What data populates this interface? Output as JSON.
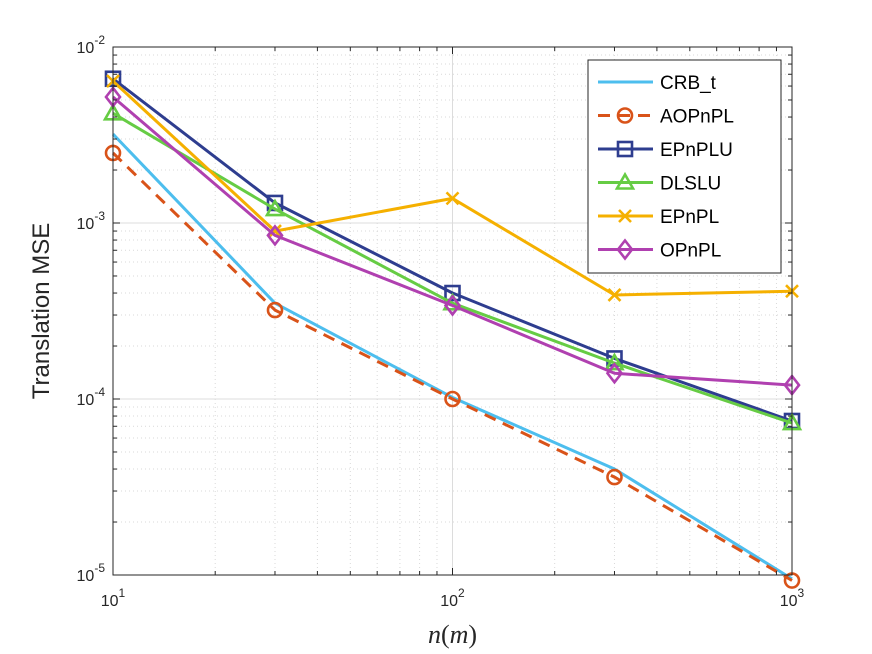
{
  "chart_data": {
    "type": "line",
    "scale": "loglog",
    "title": "",
    "xlabel": "n(m)",
    "xlabel_parts": {
      "main": "n",
      "open": "(",
      "unit": "m",
      "close": ")"
    },
    "ylabel": "Translation MSE",
    "xlim": [
      10,
      1000
    ],
    "ylim": [
      1e-05,
      0.01
    ],
    "grid": true,
    "legend_position": "top-right",
    "x_ticks": [
      {
        "value": 10,
        "base": "10",
        "exp": "1"
      },
      {
        "value": 100,
        "base": "10",
        "exp": "2"
      },
      {
        "value": 1000,
        "base": "10",
        "exp": "3"
      }
    ],
    "y_ticks": [
      {
        "value": 1e-05,
        "base": "10",
        "exp": "-5"
      },
      {
        "value": 0.0001,
        "base": "10",
        "exp": "-4"
      },
      {
        "value": 0.001,
        "base": "10",
        "exp": "-3"
      },
      {
        "value": 0.01,
        "base": "10",
        "exp": "-2"
      }
    ],
    "series": [
      {
        "name": "CRB_t",
        "color": "#4DBEEE",
        "dash": "solid",
        "marker": "none",
        "x": [
          10,
          30,
          100,
          300,
          1000
        ],
        "y": [
          0.0032,
          0.00035,
          0.000102,
          4e-05,
          9.5e-06
        ]
      },
      {
        "name": "AOPnPL",
        "color": "#D95319",
        "dash": "dashed",
        "marker": "circle",
        "x": [
          10,
          30,
          100,
          300,
          1000
        ],
        "y": [
          0.0025,
          0.00032,
          0.0001,
          3.6e-05,
          9.3e-06
        ]
      },
      {
        "name": "EPnPLU",
        "color": "#2E3D8F",
        "dash": "solid",
        "marker": "square",
        "x": [
          10,
          30,
          100,
          300,
          1000
        ],
        "y": [
          0.0066,
          0.0013,
          0.0004,
          0.00017,
          7.5e-05
        ]
      },
      {
        "name": "DLSLU",
        "color": "#66CC44",
        "dash": "solid",
        "marker": "triangle",
        "x": [
          10,
          30,
          100,
          300,
          1000
        ],
        "y": [
          0.0042,
          0.0012,
          0.00035,
          0.00016,
          7.3e-05
        ]
      },
      {
        "name": "EPnPL",
        "color": "#F5B000",
        "dash": "solid",
        "marker": "x",
        "x": [
          10,
          30,
          100,
          300,
          1000
        ],
        "y": [
          0.0064,
          0.0009,
          0.00138,
          0.00039,
          0.00041
        ]
      },
      {
        "name": "OPnPL",
        "color": "#B040B0",
        "dash": "solid",
        "marker": "diamond",
        "x": [
          10,
          30,
          100,
          300,
          1000
        ],
        "y": [
          0.0052,
          0.00085,
          0.00034,
          0.00014,
          0.00012
        ]
      }
    ]
  }
}
